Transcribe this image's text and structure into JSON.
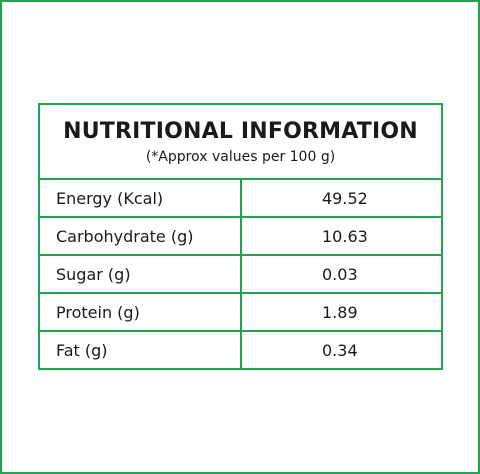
{
  "header": {
    "title": "NUTRITIONAL INFORMATION",
    "subtitle": "(*Approx values per 100 g)"
  },
  "table": {
    "rows": [
      [
        "Energy (Kcal)",
        "49.52"
      ],
      [
        "Carbohydrate (g)",
        "10.63"
      ],
      [
        "Sugar (g)",
        "0.03"
      ],
      [
        "Protein (g)",
        "1.89"
      ],
      [
        "Fat (g)",
        "0.34"
      ]
    ]
  }
}
